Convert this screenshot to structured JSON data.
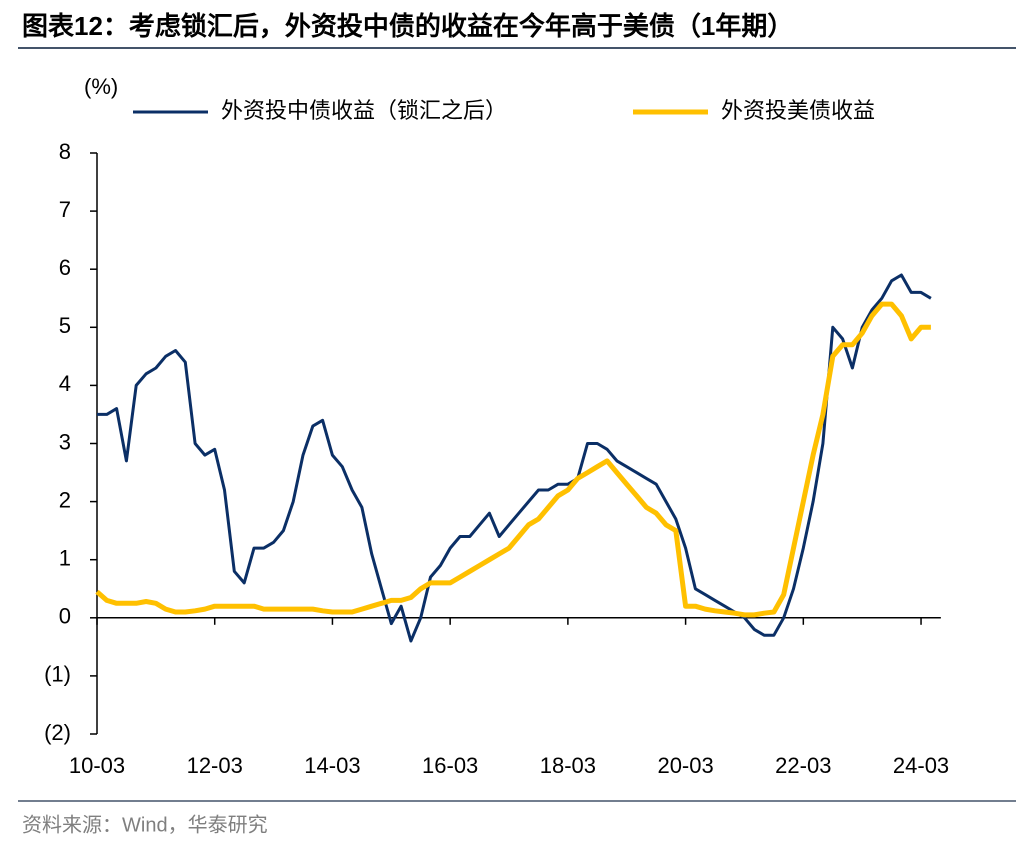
{
  "chart_data": {
    "type": "line",
    "title": "图表12：考虑锁汇后，外资投中债的收益在今年高于美债（1年期）",
    "y_label": "(%)",
    "source": "资料来源：Wind，华泰研究",
    "legend": "top",
    "categories": [
      "10-03",
      "10-05",
      "10-07",
      "10-09",
      "10-11",
      "11-01",
      "11-03",
      "11-05",
      "11-07",
      "11-09",
      "11-11",
      "12-01",
      "12-03",
      "12-05",
      "12-07",
      "12-09",
      "12-11",
      "13-01",
      "13-03",
      "13-05",
      "13-07",
      "13-09",
      "13-11",
      "14-01",
      "14-03",
      "14-05",
      "14-07",
      "14-09",
      "14-11",
      "15-01",
      "15-03",
      "15-05",
      "15-07",
      "15-09",
      "15-11",
      "16-01",
      "16-03",
      "16-05",
      "16-07",
      "16-09",
      "16-11",
      "17-01",
      "17-03",
      "17-05",
      "17-07",
      "17-09",
      "17-11",
      "18-01",
      "18-03",
      "18-05",
      "18-07",
      "18-09",
      "18-11",
      "19-01",
      "19-03",
      "19-05",
      "19-07",
      "19-09",
      "19-11",
      "20-01",
      "20-03",
      "20-05",
      "20-07",
      "20-09",
      "20-11",
      "21-01",
      "21-03",
      "21-05",
      "21-07",
      "21-09",
      "21-11",
      "22-01",
      "22-03",
      "22-05",
      "22-07",
      "22-09",
      "22-11",
      "23-01",
      "23-03",
      "23-05",
      "23-07",
      "23-09",
      "23-11",
      "24-01",
      "24-03",
      "24-05"
    ],
    "xticks": [
      "10-03",
      "12-03",
      "14-03",
      "16-03",
      "18-03",
      "20-03",
      "22-03",
      "24-03"
    ],
    "ylim": [
      -2,
      8
    ],
    "yticks": [
      {
        "value": -2,
        "label": "(2)"
      },
      {
        "value": -1,
        "label": "(1)"
      },
      0,
      1,
      2,
      3,
      4,
      5,
      6,
      7,
      8
    ],
    "series": [
      {
        "name": "外资投中债收益（锁汇之后）",
        "color": "#0b2f66",
        "width": 3,
        "values": [
          3.5,
          3.5,
          3.6,
          2.7,
          4.0,
          4.2,
          4.3,
          4.5,
          4.6,
          4.4,
          3.0,
          2.8,
          2.9,
          2.2,
          0.8,
          0.6,
          1.2,
          1.2,
          1.3,
          1.5,
          2.0,
          2.8,
          3.3,
          3.4,
          2.8,
          2.6,
          2.2,
          1.9,
          1.1,
          0.5,
          -0.1,
          0.2,
          -0.4,
          0.0,
          0.7,
          0.9,
          1.2,
          1.4,
          1.4,
          1.6,
          1.8,
          1.4,
          1.6,
          1.8,
          2.0,
          2.2,
          2.2,
          2.3,
          2.3,
          2.4,
          3.0,
          3.0,
          2.9,
          2.7,
          2.6,
          2.5,
          2.4,
          2.3,
          2.0,
          1.7,
          1.2,
          0.5,
          0.4,
          0.3,
          0.2,
          0.1,
          0.0,
          -0.2,
          -0.3,
          -0.3,
          0.0,
          0.5,
          1.2,
          2.0,
          3.0,
          5.0,
          4.8,
          4.3,
          5.0,
          5.3,
          5.5,
          5.8,
          5.9,
          5.6,
          5.6,
          5.5
        ]
      },
      {
        "name": "外资投美债收益",
        "color": "#ffc000",
        "width": 5,
        "values": [
          0.45,
          0.3,
          0.25,
          0.25,
          0.25,
          0.28,
          0.25,
          0.15,
          0.1,
          0.1,
          0.12,
          0.15,
          0.2,
          0.2,
          0.2,
          0.2,
          0.2,
          0.15,
          0.15,
          0.15,
          0.15,
          0.15,
          0.15,
          0.12,
          0.1,
          0.1,
          0.1,
          0.15,
          0.2,
          0.25,
          0.3,
          0.3,
          0.35,
          0.5,
          0.6,
          0.6,
          0.6,
          0.7,
          0.8,
          0.9,
          1.0,
          1.1,
          1.2,
          1.4,
          1.6,
          1.7,
          1.9,
          2.1,
          2.2,
          2.4,
          2.5,
          2.6,
          2.7,
          2.5,
          2.3,
          2.1,
          1.9,
          1.8,
          1.6,
          1.5,
          0.2,
          0.2,
          0.15,
          0.12,
          0.1,
          0.08,
          0.05,
          0.05,
          0.08,
          0.1,
          0.4,
          1.2,
          2.0,
          2.8,
          3.5,
          4.5,
          4.7,
          4.7,
          4.9,
          5.2,
          5.4,
          5.4,
          5.2,
          4.8,
          5.0,
          5.0
        ]
      }
    ]
  }
}
